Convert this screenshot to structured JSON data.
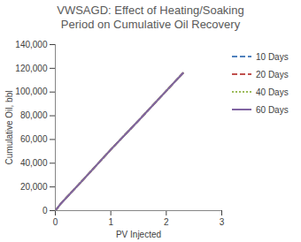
{
  "chart_data": {
    "type": "line",
    "title": [
      "VWSAGD: Effect of Heating/Soaking",
      "Period on Cumulative Oil Recovery"
    ],
    "x_label": "PV Injected",
    "y_label": "Cumulative Oil, bbl",
    "xlim": [
      0,
      3
    ],
    "xticks": [
      0,
      1,
      2,
      3
    ],
    "ylim": [
      0,
      140000
    ],
    "yticks": [
      0,
      {
        "value": 20000,
        "label": "20,000"
      },
      {
        "value": 40000,
        "label": "40,000"
      },
      {
        "value": 60000,
        "label": "60,000"
      },
      {
        "value": 80000,
        "label": "80,000"
      },
      {
        "value": 100000,
        "label": "100,000"
      },
      {
        "value": 120000,
        "label": "120,000"
      },
      {
        "value": 140000,
        "label": "140,000"
      }
    ],
    "grid": false,
    "legend": "right",
    "x": [
      0,
      0.1,
      0.5,
      1,
      1.5,
      2,
      2.3
    ],
    "series": [
      {
        "name": "10 Days",
        "color": "#4f81bd",
        "line_style": "dashed",
        "values": [
          0,
          6000,
          26000,
          51500,
          76000,
          101000,
          116000
        ]
      },
      {
        "name": "20 Days",
        "color": "#c0504d",
        "line_style": "dashed",
        "values": [
          0,
          6000,
          26000,
          51500,
          76000,
          101000,
          116000
        ]
      },
      {
        "name": "40 Days",
        "color": "#9bbb59",
        "line_style": "dotted",
        "values": [
          0,
          6000,
          26000,
          51500,
          76000,
          101000,
          116000
        ]
      },
      {
        "name": "60 Days",
        "color": "#8064a2",
        "line_style": "solid",
        "values": [
          0,
          6000,
          26000,
          51500,
          76000,
          101000,
          116000
        ]
      }
    ]
  }
}
